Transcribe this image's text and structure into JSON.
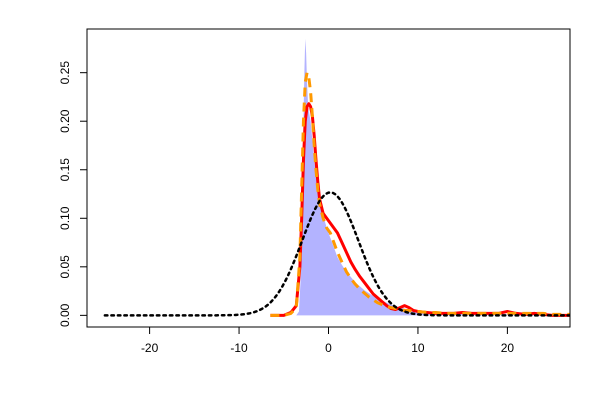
{
  "chart_data": {
    "type": "area",
    "title": "",
    "xlabel": "",
    "ylabel": "",
    "xlim": [
      -27,
      27
    ],
    "ylim": [
      -0.012,
      0.295
    ],
    "grid": false,
    "legend": "none",
    "x_ticks": [
      -20,
      -10,
      0,
      10,
      20
    ],
    "y_ticks": [
      0.0,
      0.05,
      0.1,
      0.15,
      0.2,
      0.25
    ],
    "x_tick_labels": [
      "-20",
      "-10",
      "0",
      "10",
      "20"
    ],
    "y_tick_labels": [
      "0.00",
      "0.05",
      "0.10",
      "0.15",
      "0.20",
      "0.25"
    ],
    "series": [
      {
        "style": "filled-area",
        "color": "#b3b3ff",
        "x": [
          -3.6,
          -3.3,
          -3.1,
          -2.9,
          -2.8,
          -2.7,
          -2.6,
          -2.5,
          -2.4,
          -2.3,
          -2.2,
          -2.0,
          -1.8,
          -1.6,
          -1.4,
          -1.2,
          -1.0,
          -0.8,
          -0.5,
          -0.2,
          0.2,
          0.6,
          1.0,
          1.5,
          2.0,
          3.0,
          4.0,
          5.0,
          6.0,
          7.0,
          8.0,
          9.0,
          10.0,
          12.0,
          15.0,
          20.0,
          24.0,
          27.0
        ],
        "y": [
          0.0,
          0.004,
          0.04,
          0.12,
          0.2,
          0.25,
          0.285,
          0.27,
          0.24,
          0.22,
          0.21,
          0.2,
          0.18,
          0.16,
          0.145,
          0.13,
          0.12,
          0.11,
          0.1,
          0.09,
          0.08,
          0.07,
          0.06,
          0.052,
          0.045,
          0.034,
          0.026,
          0.02,
          0.015,
          0.011,
          0.008,
          0.006,
          0.004,
          0.003,
          0.002,
          0.001,
          0.0005,
          0.0
        ]
      },
      {
        "style": "solid-line",
        "color": "#ff0000",
        "x": [
          -6.5,
          -5.0,
          -4.2,
          -3.6,
          -3.2,
          -3.0,
          -2.8,
          -2.6,
          -2.4,
          -2.2,
          -2.0,
          -1.8,
          -1.6,
          -1.4,
          -1.2,
          -1.0,
          -0.6,
          -0.2,
          0.2,
          0.6,
          1.0,
          1.5,
          2.0,
          2.5,
          3.0,
          3.5,
          4.0,
          4.5,
          5.0,
          5.5,
          6.0,
          6.5,
          7.0,
          7.5,
          8.0,
          8.5,
          9.0,
          9.5,
          10.0,
          11.0,
          12.0,
          13.0,
          14.0,
          15.0,
          16.0,
          17.0,
          18.0,
          19.0,
          20.0,
          21.0,
          22.0,
          23.0,
          24.0,
          25.0,
          27.0
        ],
        "y": [
          0.0,
          0.0,
          0.003,
          0.01,
          0.05,
          0.1,
          0.16,
          0.2,
          0.215,
          0.218,
          0.215,
          0.205,
          0.185,
          0.16,
          0.138,
          0.12,
          0.105,
          0.1,
          0.095,
          0.09,
          0.085,
          0.075,
          0.065,
          0.055,
          0.047,
          0.04,
          0.034,
          0.028,
          0.022,
          0.018,
          0.014,
          0.01,
          0.007,
          0.006,
          0.008,
          0.01,
          0.008,
          0.005,
          0.004,
          0.003,
          0.002,
          0.002,
          0.002,
          0.003,
          0.002,
          0.002,
          0.002,
          0.002,
          0.004,
          0.002,
          0.001,
          0.002,
          0.001,
          0.0,
          0.0
        ]
      },
      {
        "style": "dashed-line",
        "color": "#ff9900",
        "x": [
          -6.5,
          -5.0,
          -4.2,
          -3.6,
          -3.2,
          -3.0,
          -2.8,
          -2.6,
          -2.4,
          -2.2,
          -2.0,
          -1.8,
          -1.6,
          -1.4,
          -1.2,
          -1.0,
          -0.6,
          -0.2,
          0.2,
          0.6,
          1.0,
          1.5,
          2.0,
          2.5,
          3.0,
          3.5,
          4.0,
          4.5,
          5.0,
          5.5,
          6.0,
          6.5,
          7.0,
          7.5,
          8.0,
          8.5,
          9.0,
          9.5,
          10.0,
          11.0,
          12.0,
          13.0,
          14.0,
          15.0,
          16.0,
          17.0,
          18.0,
          19.0,
          20.0,
          21.0,
          22.0,
          23.0,
          24.0,
          25.0,
          27.0
        ],
        "y": [
          0.0,
          0.0,
          0.002,
          0.008,
          0.06,
          0.13,
          0.2,
          0.24,
          0.25,
          0.245,
          0.23,
          0.205,
          0.175,
          0.15,
          0.13,
          0.115,
          0.1,
          0.09,
          0.085,
          0.075,
          0.065,
          0.055,
          0.045,
          0.038,
          0.032,
          0.027,
          0.023,
          0.019,
          0.016,
          0.013,
          0.011,
          0.009,
          0.008,
          0.007,
          0.006,
          0.005,
          0.005,
          0.004,
          0.004,
          0.003,
          0.003,
          0.002,
          0.002,
          0.002,
          0.002,
          0.002,
          0.002,
          0.002,
          0.002,
          0.002,
          0.002,
          0.002,
          0.002,
          0.001,
          0.001
        ]
      },
      {
        "style": "dotted-line",
        "color": "#000000",
        "mean": 0.2,
        "sd": 3.15,
        "x_range": [
          -25,
          27
        ]
      }
    ]
  }
}
